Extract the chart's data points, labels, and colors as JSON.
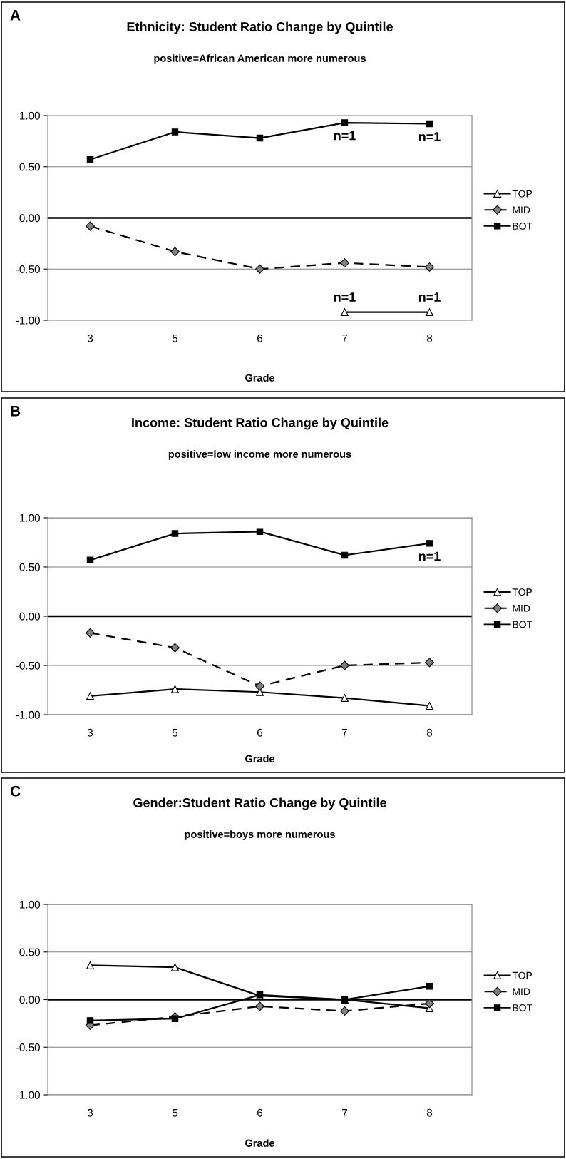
{
  "chart_data": [
    {
      "type": "line",
      "title": "Ethnicity: Student Ratio Change by Quintile",
      "subtitle": "positive=African American more numerous",
      "xlabel": "Grade",
      "categories": [
        "3",
        "5",
        "6",
        "7",
        "8"
      ],
      "ylim": [
        -1,
        1
      ],
      "yticks": [
        {
          "value": -1,
          "label": "-1.00"
        },
        {
          "value": -0.5,
          "label": "-0.50"
        },
        {
          "value": 0,
          "label": "0.00"
        },
        {
          "value": 0.5,
          "label": "0.50"
        },
        {
          "value": 1,
          "label": "1.00"
        }
      ],
      "grid": "y",
      "legend": "right",
      "ref_lines": [
        {
          "axis": "y",
          "value": 0,
          "color": "#000000"
        }
      ],
      "series": [
        {
          "name": "TOP",
          "color": "#000000",
          "marker": "triangle",
          "line_style": "solid",
          "values": [
            null,
            null,
            null,
            -0.92,
            -0.92
          ]
        },
        {
          "name": "MID",
          "color": "#000000",
          "marker": "diamond",
          "line_style": "dashed",
          "values": [
            -0.08,
            -0.33,
            -0.5,
            -0.44,
            -0.48
          ]
        },
        {
          "name": "BOT",
          "color": "#000000",
          "marker": "square",
          "line_style": "solid",
          "values": [
            0.57,
            0.84,
            0.78,
            0.93,
            0.92
          ]
        }
      ],
      "annotations": [
        "A",
        {
          "text": "n=1",
          "x": "7",
          "y": 0.93
        },
        {
          "text": "n=1",
          "x": "8",
          "y": 0.92
        },
        {
          "text": "n=1",
          "x": "7",
          "y": -0.92
        },
        {
          "text": "n=1",
          "x": "8",
          "y": -0.92
        }
      ]
    },
    {
      "type": "line",
      "title": "Income: Student Ratio Change by Quintile",
      "subtitle": "positive=low income more numerous",
      "xlabel": "Grade",
      "categories": [
        "3",
        "5",
        "6",
        "7",
        "8"
      ],
      "ylim": [
        -1,
        1
      ],
      "yticks": [
        {
          "value": -1,
          "label": "-1.00"
        },
        {
          "value": -0.5,
          "label": "-0.50"
        },
        {
          "value": 0,
          "label": "0.00"
        },
        {
          "value": 0.5,
          "label": "0.50"
        },
        {
          "value": 1,
          "label": "1.00"
        }
      ],
      "grid": "y",
      "legend": "right",
      "ref_lines": [
        {
          "axis": "y",
          "value": 0,
          "color": "#000000"
        }
      ],
      "series": [
        {
          "name": "TOP",
          "color": "#000000",
          "marker": "triangle",
          "line_style": "solid",
          "values": [
            -0.81,
            -0.74,
            -0.77,
            -0.83,
            -0.91
          ]
        },
        {
          "name": "MID",
          "color": "#000000",
          "marker": "diamond",
          "line_style": "dashed",
          "values": [
            -0.17,
            -0.32,
            -0.71,
            -0.5,
            -0.47
          ]
        },
        {
          "name": "BOT",
          "color": "#000000",
          "marker": "square",
          "line_style": "solid",
          "values": [
            0.57,
            0.84,
            0.86,
            0.62,
            0.74
          ]
        }
      ],
      "annotations": [
        "B",
        {
          "text": "n=1",
          "x": "8",
          "y": 0.74
        }
      ]
    },
    {
      "type": "line",
      "title": "Gender:Student Ratio Change by Quintile",
      "subtitle": "positive=boys more numerous",
      "xlabel": "Grade",
      "categories": [
        "3",
        "5",
        "6",
        "7",
        "8"
      ],
      "ylim": [
        -1,
        1
      ],
      "yticks": [
        {
          "value": -1,
          "label": "-1.00"
        },
        {
          "value": -0.5,
          "label": "-0.50"
        },
        {
          "value": 0,
          "label": "0.00"
        },
        {
          "value": 0.5,
          "label": "0.50"
        },
        {
          "value": 1,
          "label": "1.00"
        }
      ],
      "grid": "y",
      "legend": "right",
      "ref_lines": [
        {
          "axis": "y",
          "value": 0,
          "color": "#000000"
        }
      ],
      "series": [
        {
          "name": "TOP",
          "color": "#000000",
          "marker": "triangle",
          "line_style": "solid",
          "values": [
            0.36,
            0.34,
            0.04,
            0.0,
            -0.09
          ]
        },
        {
          "name": "MID",
          "color": "#000000",
          "marker": "diamond",
          "line_style": "dashed",
          "values": [
            -0.27,
            -0.18,
            -0.07,
            -0.12,
            -0.04
          ]
        },
        {
          "name": "BOT",
          "color": "#000000",
          "marker": "square",
          "line_style": "solid",
          "values": [
            -0.22,
            -0.2,
            0.05,
            0.0,
            0.14
          ]
        }
      ],
      "annotations": [
        "C"
      ]
    }
  ]
}
